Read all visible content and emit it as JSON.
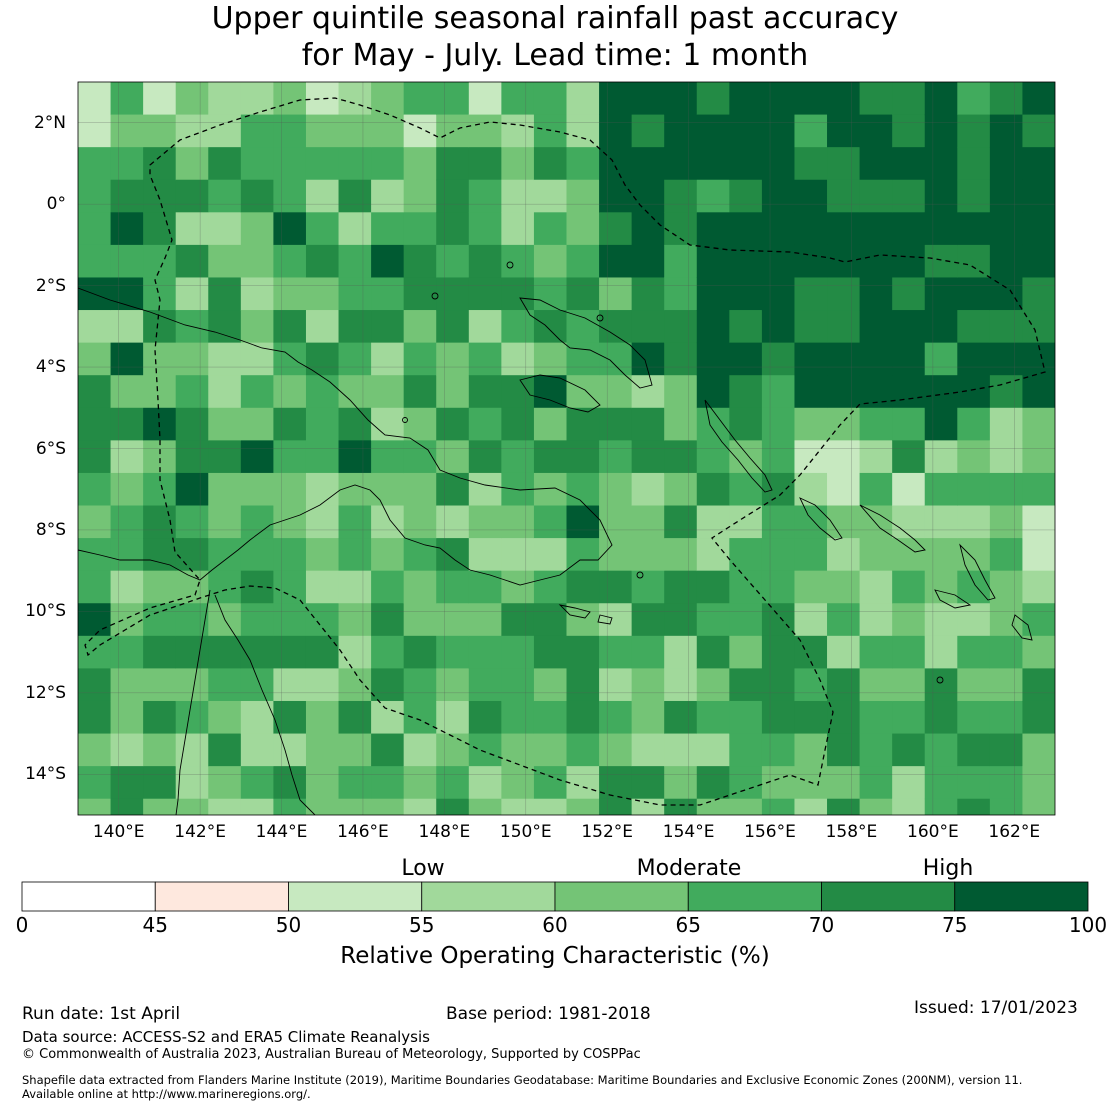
{
  "title": {
    "line1": "Upper quintile seasonal rainfall past accuracy",
    "line2": "for May - July. Lead time: 1 month"
  },
  "map": {
    "lon_min": 139,
    "lon_max": 163,
    "lat_min": -15,
    "lat_max": 3,
    "cell_deg": 0.8,
    "grid_lines": true,
    "lon_ticks": [
      "140°E",
      "142°E",
      "144°E",
      "146°E",
      "148°E",
      "150°E",
      "152°E",
      "154°E",
      "156°E",
      "158°E",
      "160°E",
      "162°E"
    ],
    "lat_ticks": [
      "2°N",
      "0°",
      "2°S",
      "4°S",
      "6°S",
      "8°S",
      "10°S",
      "12°S",
      "14°S"
    ],
    "accuracy_grid_note": "Gridded ROC (%) field; see colour scale",
    "eez_boundary": "dashed"
  },
  "colorbar": {
    "bands": [
      "Low",
      "Moderate",
      "High"
    ],
    "ticks": [
      "0",
      "45",
      "50",
      "55",
      "60",
      "65",
      "70",
      "75",
      "100"
    ],
    "bins": [
      {
        "from": 0,
        "to": 45,
        "color": "#ffffff"
      },
      {
        "from": 45,
        "to": 50,
        "color": "#fee8de"
      },
      {
        "from": 50,
        "to": 55,
        "color": "#c7e9c0"
      },
      {
        "from": 55,
        "to": 60,
        "color": "#a1d99b"
      },
      {
        "from": 60,
        "to": 65,
        "color": "#74c476"
      },
      {
        "from": 65,
        "to": 70,
        "color": "#41ab5d"
      },
      {
        "from": 70,
        "to": 75,
        "color": "#238b45"
      },
      {
        "from": 75,
        "to": 100,
        "color": "#005a32"
      }
    ],
    "label": "Relative Operating Characteristic (%)"
  },
  "footer": {
    "run_date": "Run date: 1st April",
    "base_period": "Base period: 1981-2018",
    "issued": "Issued: 17/01/2023",
    "data_source": "Data source: ACCESS-S2 and ERA5 Climate Reanalysis",
    "copyright": "© Commonwealth of Australia 2023, Australian Bureau of Meteorology, Supported by COSPPac",
    "shapefile_line1": "Shapefile data extracted from Flanders Marine Institute (2019), Maritime Boundaries Geodatabase: Maritime Boundaries and Exclusive Economic Zones (200NM), version 11.",
    "shapefile_line2": "Available online at http://www.marineregions.org/."
  }
}
